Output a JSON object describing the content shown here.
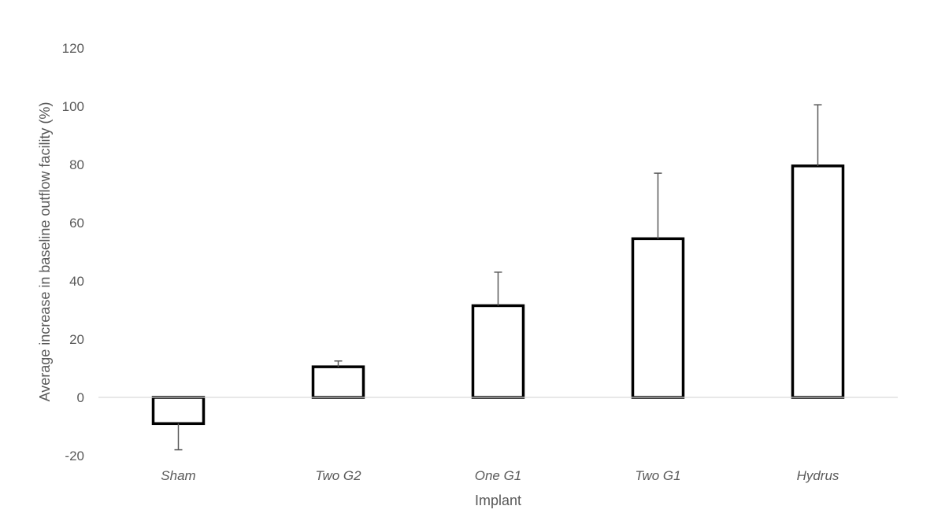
{
  "chart_data": {
    "type": "bar",
    "title": "",
    "xlabel": "Implant",
    "ylabel": "Average increase in baseline outflow facility (%)",
    "categories": [
      "Sham",
      "Two G2",
      "One G1",
      "Two G1",
      "Hydrus"
    ],
    "values": [
      -9,
      10.5,
      31.5,
      54.5,
      79.5
    ],
    "error_bars": [
      9,
      2,
      11.5,
      22.5,
      21
    ],
    "ylim": [
      -20,
      120
    ],
    "yticks": [
      -20,
      0,
      20,
      40,
      60,
      80,
      100,
      120
    ],
    "ytick_labels": [
      "-20",
      "0",
      "20",
      "40",
      "60",
      "80",
      "100",
      "120"
    ],
    "grid": false,
    "legend": "none",
    "colors": {
      "bar_fill": "#ffffff",
      "bar_stroke": "#000000",
      "error_bar": "#595959",
      "axis": "#d9d9d9",
      "text": "#595959"
    }
  }
}
